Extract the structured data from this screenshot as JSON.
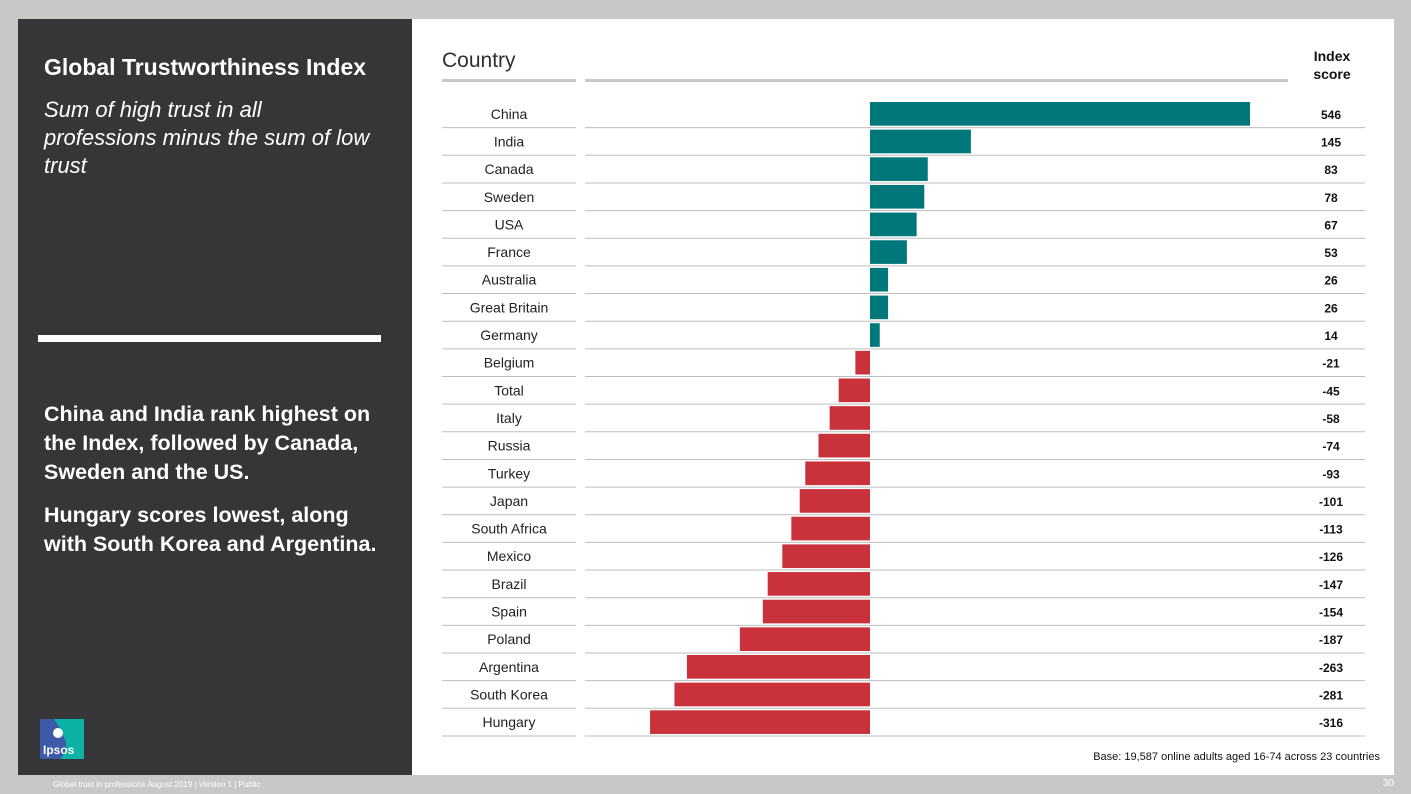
{
  "left_panel": {
    "title": "Global Trustworthiness Index",
    "subtitle": "Sum of high trust in all professions minus the sum of low trust",
    "insight_1": "China and India rank highest on the Index, followed by Canada, Sweden and the US.",
    "insight_2": "Hungary scores lowest, along with South Korea and Argentina.",
    "logo_text": "Ipsos"
  },
  "colors": {
    "positive": "#00777b",
    "negative": "#c9313b",
    "panel_dark": "#363638",
    "logo_blue": "#3d5aa8",
    "logo_teal": "#0db2a6"
  },
  "chart_data": {
    "type": "bar",
    "orientation": "horizontal",
    "category_header": "Country",
    "value_header": "Index score",
    "categories": [
      "China",
      "India",
      "Canada",
      "Sweden",
      "USA",
      "France",
      "Australia",
      "Great Britain",
      "Germany",
      "Belgium",
      "Total",
      "Italy",
      "Russia",
      "Turkey",
      "Japan",
      "South Africa",
      "Mexico",
      "Brazil",
      "Spain",
      "Poland",
      "Argentina",
      "South Korea",
      "Hungary"
    ],
    "values": [
      546,
      145,
      83,
      78,
      67,
      53,
      26,
      26,
      14,
      -21,
      -45,
      -58,
      -74,
      -93,
      -101,
      -113,
      -126,
      -147,
      -154,
      -187,
      -263,
      -281,
      -316
    ],
    "value_labels": [
      "546",
      "145",
      "83",
      "78",
      "67",
      "53",
      "26",
      "26",
      "14",
      "-21",
      "-45",
      "-58",
      "-74",
      "-93",
      "-101",
      "-113",
      "-126",
      "-147",
      "-154",
      "-187",
      "-263",
      "-281",
      "-316"
    ],
    "xlim": [
      -316,
      546
    ],
    "grid": false,
    "legend": "none"
  },
  "base_note": "Base: 19,587 online adults aged 16-74 across 23 countries",
  "footer": "Global trust in professions August 2019 | Version 1 | Public",
  "page_number": "30"
}
